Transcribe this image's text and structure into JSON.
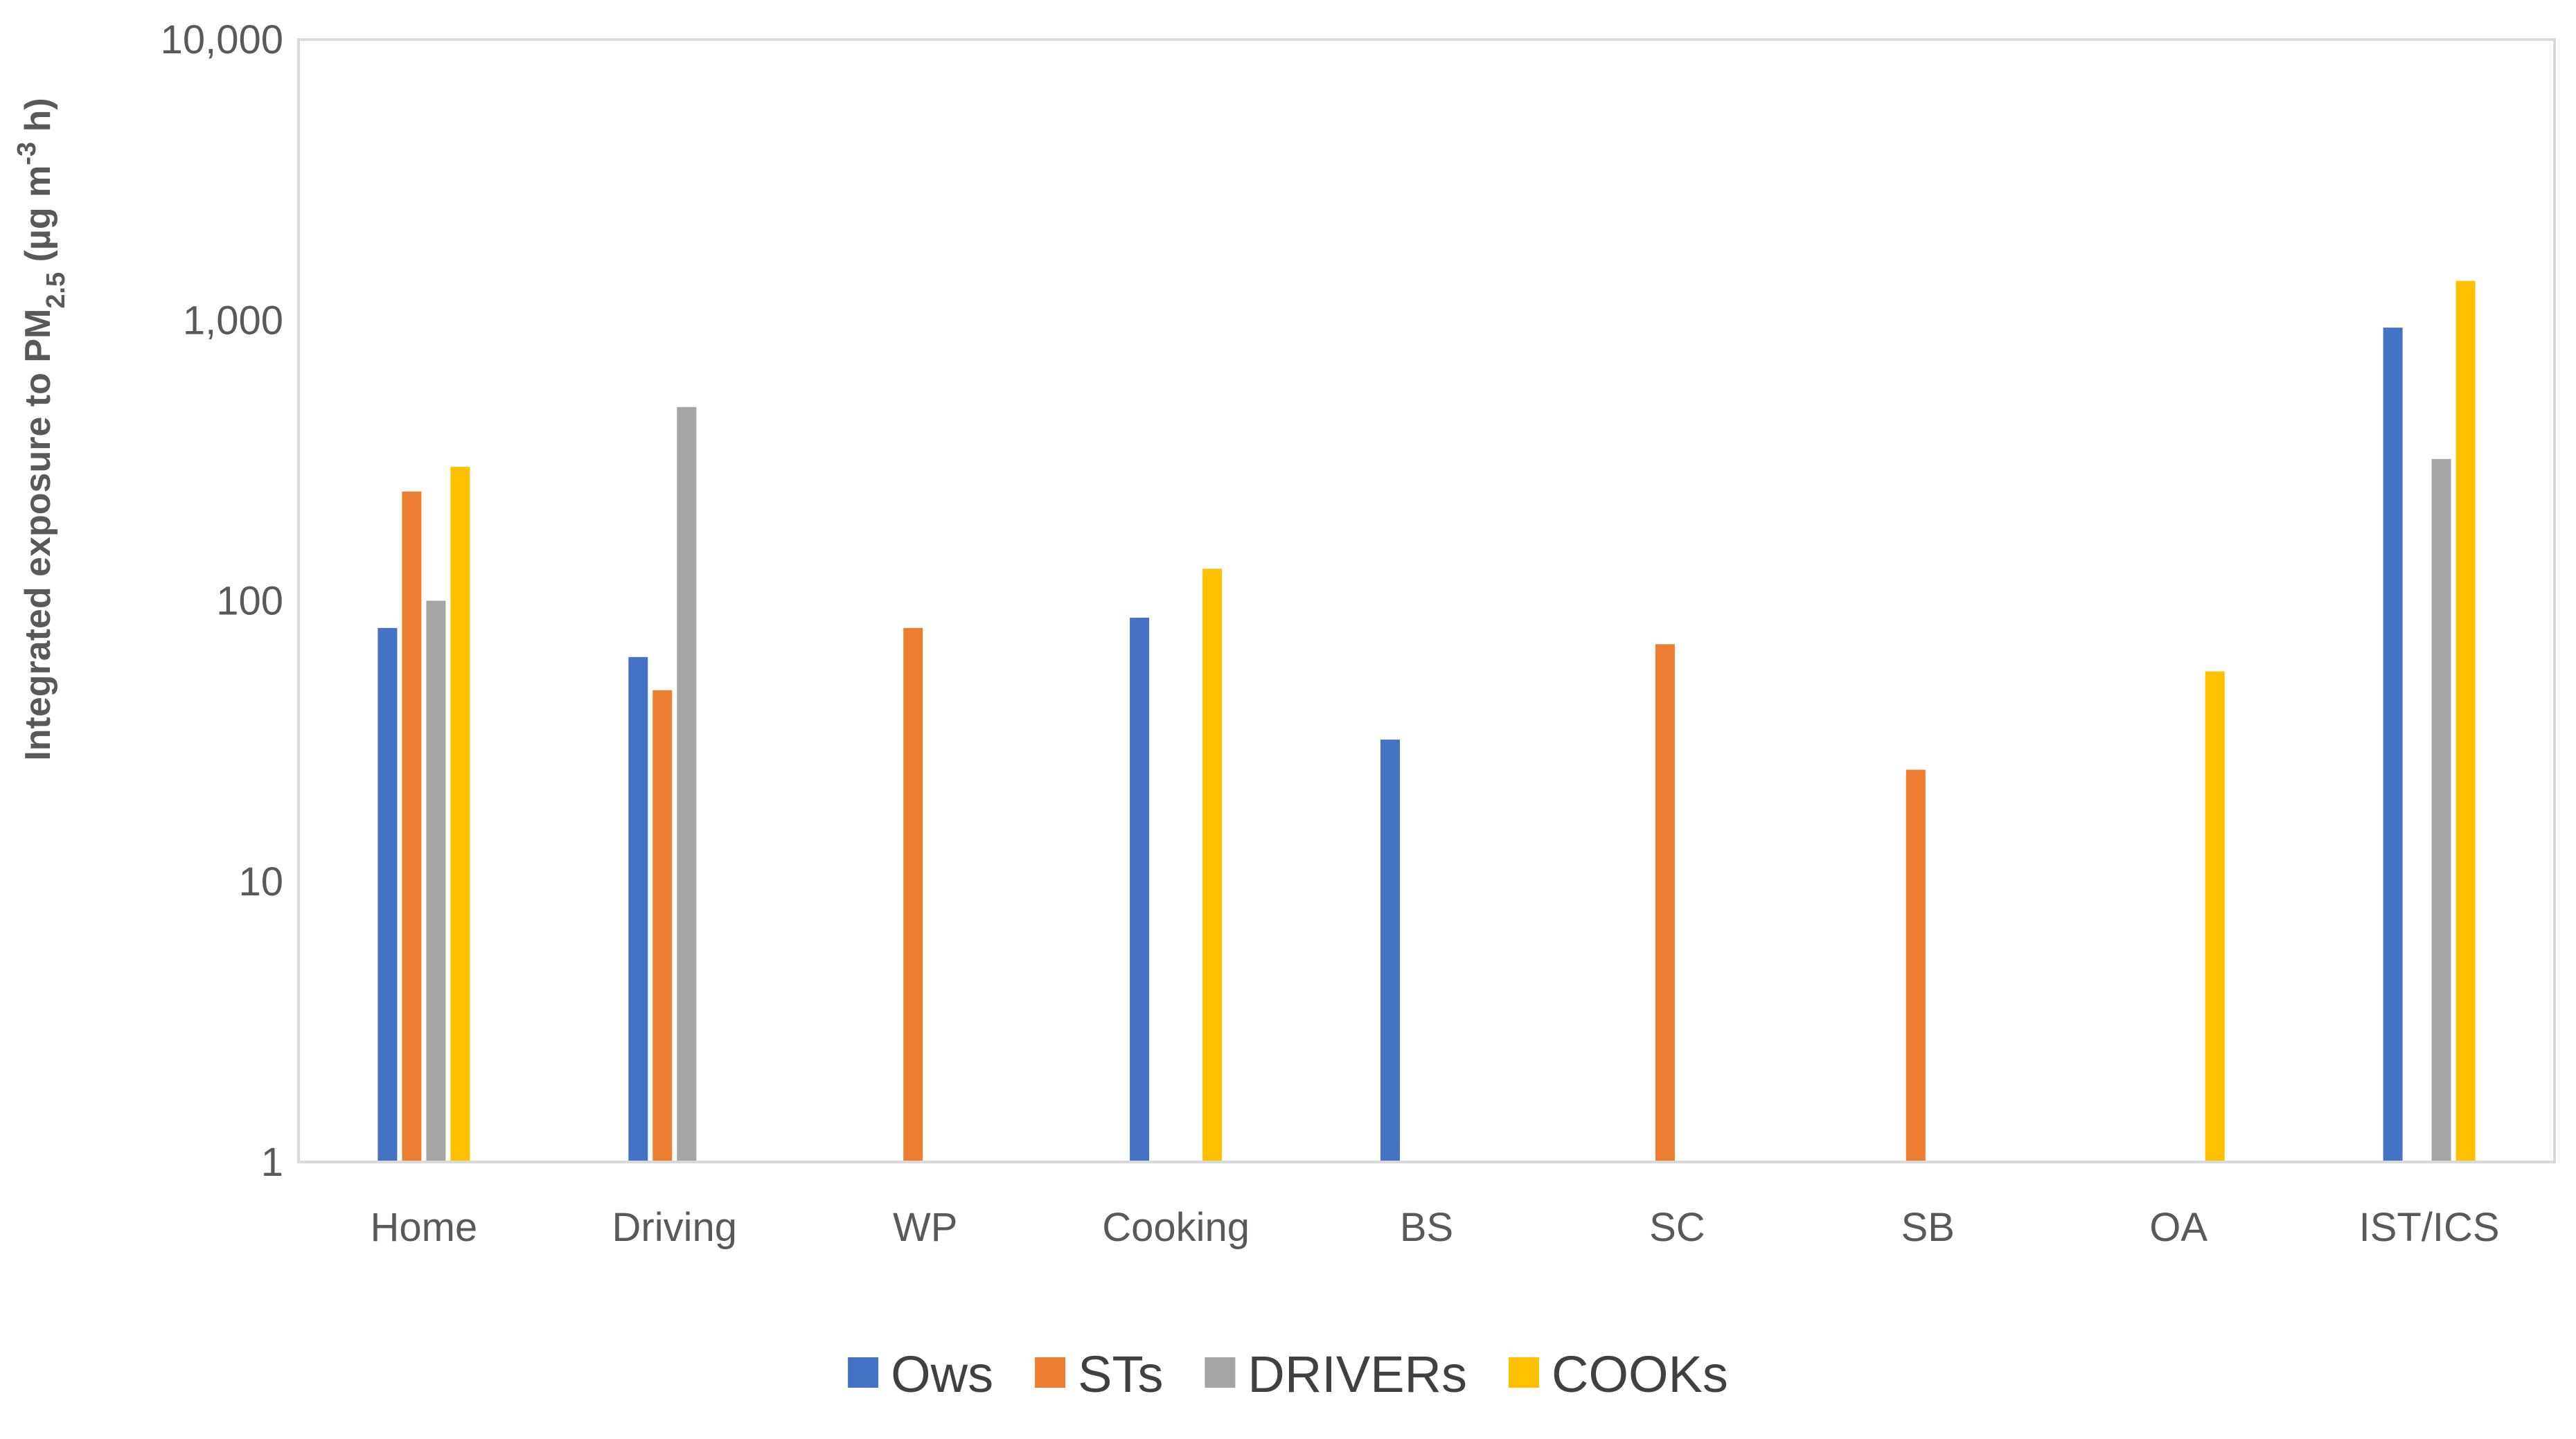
{
  "chart_data": {
    "type": "bar",
    "title": "",
    "xlabel": "",
    "ylabel": {
      "main": "Integrated exposure to PM",
      "sub": "2.5",
      "unit_prefix": " (µg m",
      "sup": "-3",
      "unit_suffix": " h)"
    },
    "yscale": "log",
    "ylim": [
      1,
      10000
    ],
    "yticks": [
      1,
      10,
      100,
      1000,
      10000
    ],
    "ytick_labels": [
      "1",
      "10",
      "100",
      "1,000",
      "10,000"
    ],
    "categories": [
      "Home",
      "Driving",
      "WP",
      "Cooking",
      "BS",
      "SC",
      "SB",
      "OA",
      "IST/ICS"
    ],
    "series": [
      {
        "name": "Ows",
        "color": "#4472C4",
        "values": [
          80,
          63,
          null,
          87,
          32,
          null,
          null,
          null,
          940
        ]
      },
      {
        "name": "STs",
        "color": "#ED7D31",
        "values": [
          245,
          48,
          80,
          null,
          null,
          70,
          25,
          null,
          null
        ]
      },
      {
        "name": "DRIVERs",
        "color": "#A5A5A5",
        "values": [
          100,
          490,
          null,
          null,
          null,
          null,
          null,
          null,
          320
        ]
      },
      {
        "name": "COOKs",
        "color": "#FFC000",
        "values": [
          300,
          null,
          null,
          130,
          null,
          null,
          null,
          56,
          1380
        ]
      }
    ],
    "bar_assignment_note": "",
    "legend_position": "bottom",
    "grid": false
  }
}
